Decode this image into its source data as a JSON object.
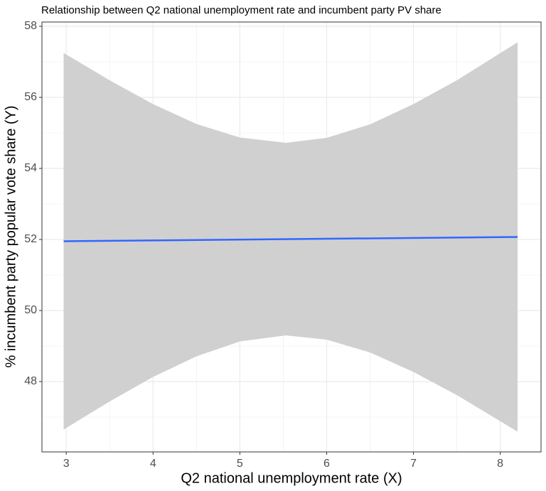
{
  "chart_data": {
    "type": "line",
    "title": "Relationship between Q2 national unemployment rate and incumbent party PV share",
    "x_label": "Q2 national unemployment rate (X)",
    "y_label": "% incumbent party popular vote share (Y)",
    "x": [
      2.97,
      8.2
    ],
    "series": [
      {
        "color": "#3366ff",
        "values": [
          51.95,
          52.07
        ]
      }
    ],
    "band": {
      "color": "#d0d0d0",
      "x": [
        2.97,
        3.5,
        4,
        4.5,
        5,
        5.53,
        6,
        6.5,
        7,
        7.5,
        8.2
      ],
      "upper": [
        57.25,
        56.48,
        55.81,
        55.25,
        54.87,
        54.72,
        54.86,
        55.24,
        55.81,
        56.48,
        57.55
      ],
      "lower": [
        46.65,
        47.44,
        48.13,
        48.71,
        49.13,
        49.3,
        49.18,
        48.82,
        48.27,
        47.62,
        46.59
      ]
    },
    "xlim": [
      2.72,
      8.47
    ],
    "ylim": [
      46.02,
      58.12
    ],
    "xticks": [
      3,
      4,
      5,
      6,
      7,
      8
    ],
    "yticks": [
      48,
      50,
      52,
      54,
      56,
      58
    ],
    "x_minor_ticks": [
      3.5,
      4.5,
      5.5,
      6.5,
      7.5
    ],
    "y_minor_ticks": [
      47,
      49,
      51,
      53,
      55,
      57
    ],
    "grid": true
  }
}
